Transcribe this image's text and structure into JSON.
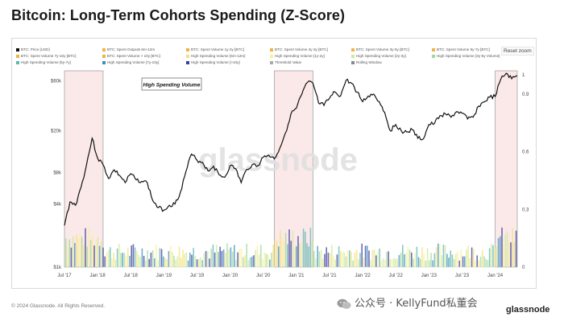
{
  "title": "Bitcoin: Long-Term Cohorts Spending (Z-Score)",
  "reset_zoom": "Reset zoom",
  "legend": [
    {
      "label": "BTC: Price [USD]",
      "color": "#111111"
    },
    {
      "label": "BTC: Spent Outputs 6m-12m",
      "color": "#f2b24a"
    },
    {
      "label": "BTC: Spent Volume 1y-2y [BTC]",
      "color": "#f2b24a"
    },
    {
      "label": "BTC: Spent Volume 2y-3y [BTC]",
      "color": "#f2b24a"
    },
    {
      "label": "BTC: Spent Volume 3y-5y [BTC]",
      "color": "#f2b24a"
    },
    {
      "label": "BTC: Spent Volume 5y-7y [BTC]",
      "color": "#f2b24a"
    },
    {
      "label": "BTC: Spent Volume 7y-10y [BTC]",
      "color": "#f2b24a"
    },
    {
      "label": "BTC: Spent Volume > 10y [BTC]",
      "color": "#f2b24a"
    },
    {
      "label": "High Spending Volume [6m-12m]",
      "color": "#f2e27a"
    },
    {
      "label": "High Spending Volume [1y-2y]",
      "color": "#f7ef9a"
    },
    {
      "label": "High Spending Volume [2y-3y]",
      "color": "#cfe89a"
    },
    {
      "label": "High Spending Volume [3y-5y Volume]",
      "color": "#9fd89a"
    },
    {
      "label": "High Spending Volume [5y-7y]",
      "color": "#5fb7b2"
    },
    {
      "label": "High Spending Volume [7y-10y]",
      "color": "#3d8fc0"
    },
    {
      "label": "High Spending Volume [>10y]",
      "color": "#3b3f9c"
    },
    {
      "label": "Threshold Value",
      "color": "#aaaaaa"
    },
    {
      "label": "Rolling Window",
      "color": "#888888"
    }
  ],
  "annotation": "High Spending Volume",
  "watermark": "glassnode",
  "footer": "© 2024 Glassnode. All Rights Reserved.",
  "wechat_label": "公众号 · KellyFund私董会",
  "brand": "glassnode",
  "chart_data": {
    "type": "line",
    "x_ticks": [
      "Jul '17",
      "Jan '18",
      "Jul '18",
      "Jan '19",
      "Jul '19",
      "Jan '20",
      "Jul '20",
      "Jan '21",
      "Jul '21",
      "Jan '22",
      "Jul '22",
      "Jan '23",
      "Jul '23",
      "Jan '24"
    ],
    "y_left_ticks": [
      "$60k",
      "$20k",
      "$8k",
      "$4k",
      "$1k"
    ],
    "y_left_values": [
      60000,
      20000,
      8000,
      4000,
      1000
    ],
    "y_left_scale": "log",
    "y_right_ticks": [
      "1",
      "0.9",
      "0.6",
      "0.3",
      "0"
    ],
    "y_right_values": [
      1,
      0.9,
      0.6,
      0.3,
      0
    ],
    "x_range": [
      "2017-07",
      "2024-05"
    ],
    "series": [
      {
        "name": "BTC: Price [USD]",
        "x": [
          "2017-07",
          "2017-08",
          "2017-09",
          "2017-10",
          "2017-11",
          "2017-12",
          "2018-01",
          "2018-02",
          "2018-03",
          "2018-04",
          "2018-05",
          "2018-06",
          "2018-07",
          "2018-08",
          "2018-09",
          "2018-10",
          "2018-11",
          "2018-12",
          "2019-01",
          "2019-02",
          "2019-03",
          "2019-04",
          "2019-05",
          "2019-06",
          "2019-07",
          "2019-08",
          "2019-09",
          "2019-10",
          "2019-11",
          "2019-12",
          "2020-01",
          "2020-02",
          "2020-03",
          "2020-04",
          "2020-05",
          "2020-06",
          "2020-07",
          "2020-08",
          "2020-09",
          "2020-10",
          "2020-11",
          "2020-12",
          "2021-01",
          "2021-02",
          "2021-03",
          "2021-04",
          "2021-05",
          "2021-06",
          "2021-07",
          "2021-08",
          "2021-09",
          "2021-10",
          "2021-11",
          "2021-12",
          "2022-01",
          "2022-02",
          "2022-03",
          "2022-04",
          "2022-05",
          "2022-06",
          "2022-07",
          "2022-08",
          "2022-09",
          "2022-10",
          "2022-11",
          "2022-12",
          "2023-01",
          "2023-02",
          "2023-03",
          "2023-04",
          "2023-05",
          "2023-06",
          "2023-07",
          "2023-08",
          "2023-09",
          "2023-10",
          "2023-11",
          "2023-12",
          "2024-01",
          "2024-02",
          "2024-03",
          "2024-04",
          "2024-05"
        ],
        "values": [
          2500,
          4200,
          3900,
          5800,
          9500,
          17000,
          11000,
          9500,
          7000,
          8500,
          7500,
          6400,
          7800,
          6800,
          6600,
          6400,
          4300,
          3700,
          3500,
          3900,
          4000,
          5200,
          8200,
          12000,
          10500,
          10000,
          8300,
          9200,
          7600,
          7200,
          9300,
          8700,
          6400,
          8600,
          9500,
          9300,
          11200,
          11700,
          10800,
          13700,
          19000,
          28900,
          33000,
          45000,
          58000,
          57000,
          37000,
          35000,
          41000,
          47000,
          43000,
          61000,
          57000,
          47000,
          38000,
          43000,
          45000,
          38000,
          30000,
          20000,
          23000,
          20000,
          19500,
          20500,
          17000,
          16800,
          23000,
          23500,
          28000,
          29000,
          27000,
          30500,
          29500,
          26000,
          27000,
          34500,
          37800,
          42000,
          42500,
          62000,
          71000,
          63000,
          67000
        ]
      }
    ],
    "highlight_periods": [
      {
        "start": "2017-07",
        "end": "2018-02"
      },
      {
        "start": "2020-09",
        "end": "2021-04"
      },
      {
        "start": "2024-01",
        "end": "2024-05"
      }
    ],
    "legend_position": "top",
    "grid": false
  }
}
